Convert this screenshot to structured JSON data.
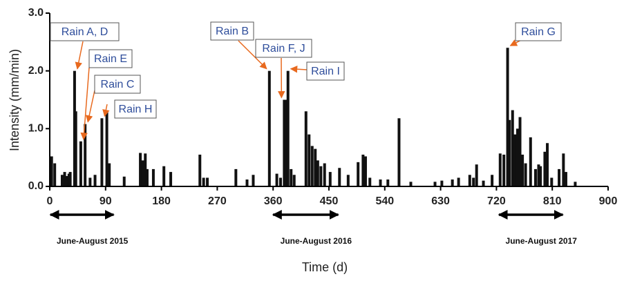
{
  "chart_data": {
    "type": "bar",
    "xlabel": "Time (d)",
    "ylabel": "Intensity (mm/min)",
    "color": "#111111",
    "annotation_color": "#e8691e",
    "xlim": [
      0,
      900
    ],
    "ylim": [
      0,
      3
    ],
    "xticks": [
      0,
      90,
      180,
      270,
      360,
      450,
      540,
      630,
      720,
      810,
      900
    ],
    "yticks": [
      {
        "value": 0,
        "label": "0.0"
      },
      {
        "value": 1,
        "label": "1.0"
      },
      {
        "value": 2,
        "label": "2.0"
      },
      {
        "value": 3,
        "label": "3.0"
      }
    ],
    "x": [
      3,
      8,
      20,
      24,
      28,
      31,
      33,
      40,
      42,
      50,
      57,
      65,
      73,
      84,
      92,
      96,
      120,
      146,
      150,
      154,
      157,
      167,
      184,
      195,
      242,
      248,
      254,
      300,
      318,
      328,
      354,
      366,
      372,
      378,
      381,
      384,
      389,
      394,
      413,
      418,
      423,
      428,
      432,
      437,
      443,
      452,
      467,
      481,
      497,
      505,
      509,
      516,
      533,
      545,
      563,
      582,
      621,
      632,
      649,
      659,
      677,
      683,
      688,
      699,
      713,
      726,
      732,
      738,
      741,
      746,
      750,
      754,
      758,
      762,
      767,
      775,
      783,
      788,
      791,
      798,
      802,
      809,
      821,
      828,
      832,
      847
    ],
    "values": [
      0.52,
      0.4,
      0.2,
      0.25,
      0.18,
      0.22,
      0.25,
      2.0,
      1.3,
      0.78,
      1.08,
      0.15,
      0.2,
      1.18,
      1.3,
      0.4,
      0.17,
      0.58,
      0.45,
      0.57,
      0.3,
      0.3,
      0.35,
      0.25,
      0.55,
      0.15,
      0.15,
      0.3,
      0.12,
      0.2,
      2.0,
      0.22,
      0.15,
      1.5,
      1.5,
      2.0,
      0.3,
      0.2,
      1.3,
      0.9,
      0.7,
      0.65,
      0.45,
      0.35,
      0.4,
      0.25,
      0.32,
      0.2,
      0.42,
      0.55,
      0.52,
      0.15,
      0.12,
      0.12,
      1.18,
      0.08,
      0.08,
      0.1,
      0.12,
      0.15,
      0.2,
      0.15,
      0.38,
      0.1,
      0.2,
      0.57,
      0.55,
      2.4,
      1.15,
      1.32,
      0.9,
      1.0,
      1.2,
      0.55,
      0.4,
      0.85,
      0.3,
      0.38,
      0.35,
      0.6,
      0.75,
      0.15,
      0.3,
      0.57,
      0.25,
      0.08
    ],
    "annotations": [
      {
        "text": "Rain A, D",
        "x": 40,
        "y": 2.0
      },
      {
        "text": "Rain E",
        "x": 50,
        "y": 0.78
      },
      {
        "text": "Rain C",
        "x": 57,
        "y": 1.08
      },
      {
        "text": "Rain H",
        "x": 84,
        "y": 1.18
      },
      {
        "text": "Rain B",
        "x": 354,
        "y": 2.0
      },
      {
        "text": "Rain F, J",
        "x": 378,
        "y": 1.5
      },
      {
        "text": "Rain I",
        "x": 384,
        "y": 2.0
      },
      {
        "text": "Rain G",
        "x": 738,
        "y": 2.4
      }
    ],
    "periods": [
      {
        "label": "June-August 2015",
        "x": [
          1,
          103
        ]
      },
      {
        "label": "June-August 2016",
        "x": [
          360,
          465
        ]
      },
      {
        "label": "June-August 2017",
        "x": [
          724,
          827
        ]
      }
    ]
  }
}
